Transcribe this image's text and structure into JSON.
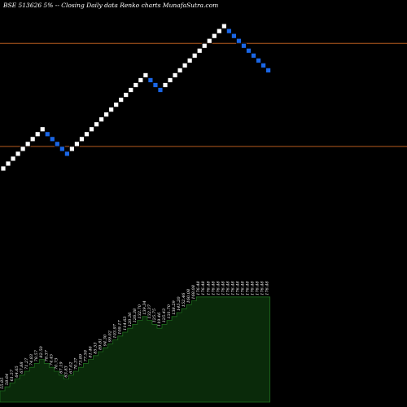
{
  "title": "BSE 513626  5% -- Closing Daily data  Renko  charts MunafaSutra.com",
  "colors": {
    "background": "#000000",
    "up_brick": "#ffffff",
    "down_brick": "#1a66e6",
    "level_line": "#b45a1e",
    "volume_fill": "#0a2a0a",
    "volume_outline": "#1e6e1e"
  },
  "chart_data": [
    {
      "type": "renko",
      "box_size_percent": 5,
      "bricks": [
        {
          "index": 0,
          "level": 0,
          "dir": "up"
        },
        {
          "index": 1,
          "level": 1,
          "dir": "up"
        },
        {
          "index": 2,
          "level": 2,
          "dir": "up"
        },
        {
          "index": 3,
          "level": 3,
          "dir": "up"
        },
        {
          "index": 4,
          "level": 4,
          "dir": "up"
        },
        {
          "index": 5,
          "level": 5,
          "dir": "up"
        },
        {
          "index": 6,
          "level": 6,
          "dir": "up"
        },
        {
          "index": 7,
          "level": 7,
          "dir": "up"
        },
        {
          "index": 8,
          "level": 8,
          "dir": "up"
        },
        {
          "index": 9,
          "level": 7,
          "dir": "down"
        },
        {
          "index": 10,
          "level": 6,
          "dir": "down"
        },
        {
          "index": 11,
          "level": 5,
          "dir": "down"
        },
        {
          "index": 12,
          "level": 4,
          "dir": "down"
        },
        {
          "index": 13,
          "level": 3,
          "dir": "down"
        },
        {
          "index": 14,
          "level": 4,
          "dir": "up"
        },
        {
          "index": 15,
          "level": 5,
          "dir": "up"
        },
        {
          "index": 16,
          "level": 6,
          "dir": "up"
        },
        {
          "index": 17,
          "level": 7,
          "dir": "up"
        },
        {
          "index": 18,
          "level": 8,
          "dir": "up"
        },
        {
          "index": 19,
          "level": 9,
          "dir": "up"
        },
        {
          "index": 20,
          "level": 10,
          "dir": "up"
        },
        {
          "index": 21,
          "level": 11,
          "dir": "up"
        },
        {
          "index": 22,
          "level": 12,
          "dir": "up"
        },
        {
          "index": 23,
          "level": 13,
          "dir": "up"
        },
        {
          "index": 24,
          "level": 14,
          "dir": "up"
        },
        {
          "index": 25,
          "level": 15,
          "dir": "up"
        },
        {
          "index": 26,
          "level": 16,
          "dir": "up"
        },
        {
          "index": 27,
          "level": 17,
          "dir": "up"
        },
        {
          "index": 28,
          "level": 18,
          "dir": "up"
        },
        {
          "index": 29,
          "level": 19,
          "dir": "up"
        },
        {
          "index": 30,
          "level": 18,
          "dir": "down"
        },
        {
          "index": 31,
          "level": 17,
          "dir": "down"
        },
        {
          "index": 32,
          "level": 16,
          "dir": "down"
        },
        {
          "index": 33,
          "level": 17,
          "dir": "up"
        },
        {
          "index": 34,
          "level": 18,
          "dir": "up"
        },
        {
          "index": 35,
          "level": 19,
          "dir": "up"
        },
        {
          "index": 36,
          "level": 20,
          "dir": "up"
        },
        {
          "index": 37,
          "level": 21,
          "dir": "up"
        },
        {
          "index": 38,
          "level": 22,
          "dir": "up"
        },
        {
          "index": 39,
          "level": 23,
          "dir": "up"
        },
        {
          "index": 40,
          "level": 24,
          "dir": "up"
        },
        {
          "index": 41,
          "level": 25,
          "dir": "up"
        },
        {
          "index": 42,
          "level": 26,
          "dir": "up"
        },
        {
          "index": 43,
          "level": 27,
          "dir": "up"
        },
        {
          "index": 44,
          "level": 28,
          "dir": "up"
        },
        {
          "index": 45,
          "level": 29,
          "dir": "up"
        },
        {
          "index": 46,
          "level": 28,
          "dir": "down"
        },
        {
          "index": 47,
          "level": 27,
          "dir": "down"
        },
        {
          "index": 48,
          "level": 26,
          "dir": "down"
        },
        {
          "index": 49,
          "level": 25,
          "dir": "down"
        },
        {
          "index": 50,
          "level": 24,
          "dir": "down"
        },
        {
          "index": 51,
          "level": 23,
          "dir": "down"
        },
        {
          "index": 52,
          "level": 22,
          "dir": "down"
        },
        {
          "index": 53,
          "level": 21,
          "dir": "down"
        },
        {
          "index": 54,
          "level": 20,
          "dir": "down"
        }
      ],
      "reference_levels": [
        {
          "name": "upper",
          "level": 25.5
        },
        {
          "name": "lower",
          "level": 4.5
        }
      ],
      "grid": false
    },
    {
      "type": "area",
      "name": "volume-profile",
      "x": [
        0,
        1,
        2,
        3,
        4,
        5,
        6,
        7,
        8,
        9,
        10,
        11,
        12,
        13,
        14,
        15,
        16,
        17,
        18,
        19,
        20,
        21,
        22,
        23,
        24,
        25,
        26,
        27,
        28,
        29,
        30,
        31,
        32,
        33,
        34,
        35,
        36,
        37,
        38,
        39,
        40,
        41,
        42,
        43,
        44,
        45,
        46,
        47,
        48,
        49,
        50,
        51,
        52,
        53,
        54
      ],
      "values": [
        0,
        1,
        2,
        3,
        4,
        5,
        6,
        7,
        8,
        7,
        6,
        5,
        4,
        3,
        4,
        5,
        6,
        7,
        8,
        9,
        10,
        11,
        12,
        13,
        14,
        15,
        16,
        17,
        18,
        19,
        18,
        17,
        16,
        17,
        18,
        19,
        20,
        21,
        22,
        23,
        24,
        24,
        24,
        24,
        24,
        24,
        24,
        24,
        24,
        24,
        24,
        24,
        24,
        24,
        24
      ],
      "labels": [
        "55.85",
        "58.64",
        "61.57",
        "64.65",
        "67.88",
        "71.27",
        "74.83",
        "78.57",
        "82.50",
        "78.37",
        "74.45",
        "70.73",
        "67.19",
        "63.83",
        "67.02",
        "70.37",
        "73.89",
        "77.58",
        "81.46",
        "85.53",
        "89.81",
        "94.30",
        "99.02",
        "103.97",
        "109.17",
        "114.63",
        "120.36",
        "126.38",
        "132.70",
        "139.34",
        "132.37",
        "125.75",
        "119.46",
        "125.43",
        "131.70",
        "138.29",
        "145.20",
        "152.46",
        "160.08",
        "168.08",
        "176.48",
        "176.48",
        "176.48",
        "176.48",
        "176.48",
        "176.48",
        "176.48",
        "176.48",
        "176.48",
        "176.48",
        "176.48",
        "176.48",
        "176.48",
        "176.48",
        "176.48"
      ]
    }
  ]
}
